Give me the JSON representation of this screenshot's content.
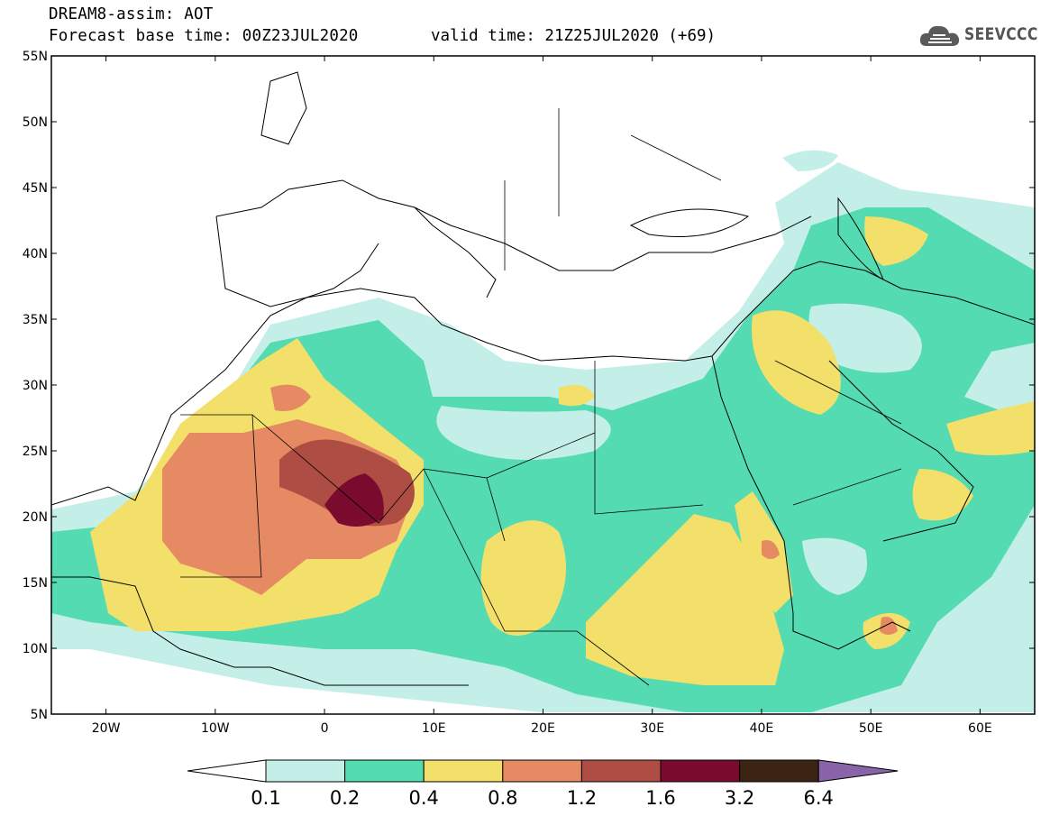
{
  "title": {
    "line1": "DREAM8-assim: AOT",
    "line2": "Forecast base time: 00Z23JUL2020",
    "valid": "valid time: 21Z25JUL2020 (+69)"
  },
  "logo": {
    "text": "SEEVCCC",
    "icon": "cloud-icon"
  },
  "map": {
    "lon_range": [
      -25,
      65
    ],
    "lat_range": [
      5,
      55
    ],
    "lat_ticks": [
      "55N",
      "50N",
      "45N",
      "40N",
      "35N",
      "30N",
      "25N",
      "20N",
      "15N",
      "10N",
      "5N"
    ],
    "lon_ticks": [
      "20W",
      "10W",
      "0",
      "10E",
      "20E",
      "30E",
      "40E",
      "50E",
      "60E"
    ],
    "field": "AOT"
  },
  "colorbar": {
    "labels": [
      "0.1",
      "0.2",
      "0.4",
      "0.8",
      "1.2",
      "1.6",
      "3.2",
      "6.4"
    ],
    "colors": [
      "#ffffff",
      "#c4efe8",
      "#55dbb2",
      "#f2e06b",
      "#e58a62",
      "#ad4d43",
      "#7a0a2e",
      "#3c2414",
      "#8a64a8"
    ]
  }
}
